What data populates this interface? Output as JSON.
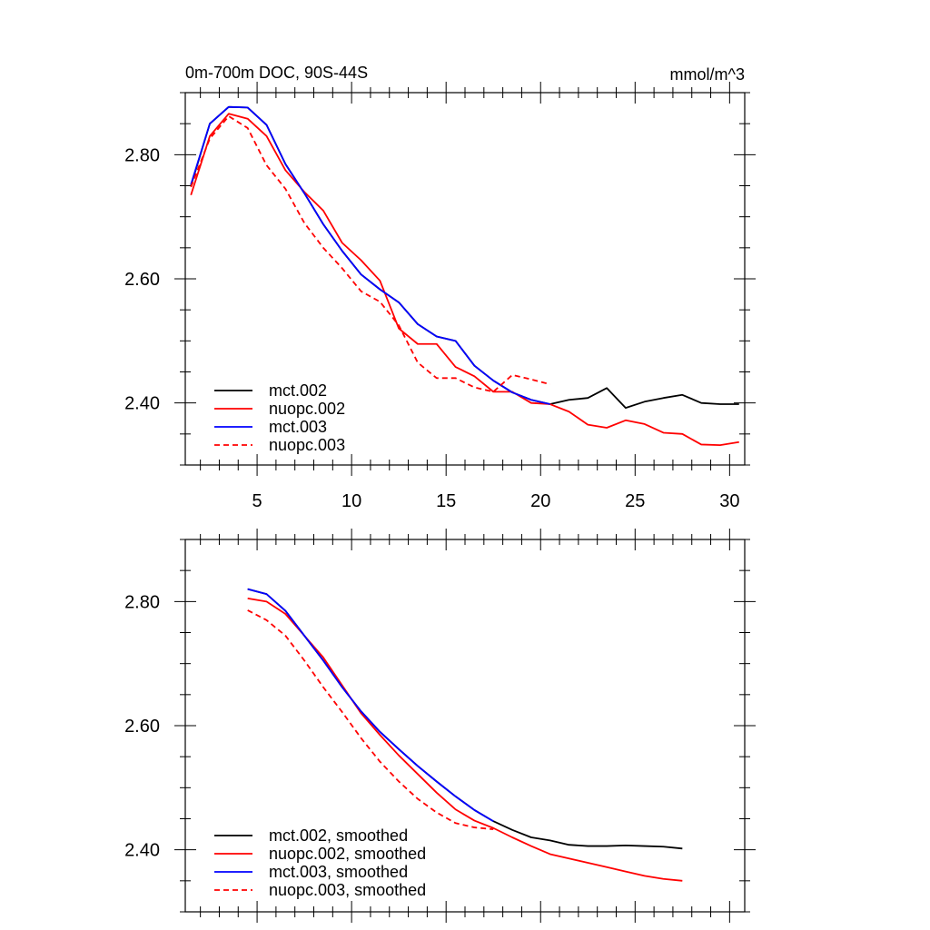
{
  "chart_data": [
    {
      "type": "line",
      "title": "0m-700m DOC, 90S-44S",
      "units": "mmol/m^3",
      "xlim": [
        1.2,
        30.8
      ],
      "ylim": [
        2.3,
        2.9
      ],
      "xticks": [
        5,
        10,
        15,
        20,
        25,
        30
      ],
      "xtick_labels": [
        "5",
        "10",
        "15",
        "20",
        "25",
        "30"
      ],
      "yticks": [
        2.4,
        2.6,
        2.8
      ],
      "ytick_labels": [
        "2.40",
        "2.60",
        "2.80"
      ],
      "legend": "bottom-left",
      "series": [
        {
          "name": "mct.002",
          "color": "#000000",
          "dash": "solid",
          "x": [
            1.5,
            2.5,
            3.5,
            4.5,
            5.5,
            6.5,
            7.5,
            8.5,
            9.5,
            10.5,
            11.5,
            12.5,
            13.5,
            14.5,
            15.5,
            16.5,
            17.5,
            18.5,
            19.5,
            20.5,
            21.5,
            22.5,
            23.5,
            24.5,
            25.5,
            26.5,
            27.5,
            28.5,
            29.5,
            30.5
          ],
          "y": [
            2.75,
            2.85,
            2.877,
            2.876,
            2.848,
            2.785,
            2.738,
            2.688,
            2.645,
            2.607,
            2.583,
            2.562,
            2.527,
            2.507,
            2.5,
            2.46,
            2.436,
            2.417,
            2.405,
            2.398,
            2.405,
            2.408,
            2.424,
            2.392,
            2.402,
            2.408,
            2.413,
            2.4,
            2.398,
            2.398
          ]
        },
        {
          "name": "nuopc.002",
          "color": "#ff0000",
          "dash": "solid",
          "x": [
            1.5,
            2.5,
            3.5,
            4.5,
            5.5,
            6.5,
            7.5,
            8.5,
            9.5,
            10.5,
            11.5,
            12.5,
            13.5,
            14.5,
            15.5,
            16.5,
            17.5,
            18.5,
            19.5,
            20.5,
            21.5,
            22.5,
            23.5,
            24.5,
            25.5,
            26.5,
            27.5,
            28.5,
            29.5,
            30.5
          ],
          "y": [
            2.735,
            2.83,
            2.866,
            2.858,
            2.83,
            2.775,
            2.74,
            2.71,
            2.658,
            2.63,
            2.597,
            2.52,
            2.495,
            2.495,
            2.458,
            2.443,
            2.418,
            2.418,
            2.4,
            2.398,
            2.386,
            2.365,
            2.36,
            2.372,
            2.366,
            2.352,
            2.35,
            2.333,
            2.332,
            2.337
          ]
        },
        {
          "name": "mct.003",
          "color": "#0000ff",
          "dash": "solid",
          "x": [
            1.5,
            2.5,
            3.5,
            4.5,
            5.5,
            6.5,
            7.5,
            8.5,
            9.5,
            10.5,
            11.5,
            12.5,
            13.5,
            14.5,
            15.5,
            16.5,
            17.5,
            18.5,
            19.5,
            20.5
          ],
          "y": [
            2.752,
            2.85,
            2.877,
            2.876,
            2.848,
            2.785,
            2.738,
            2.688,
            2.645,
            2.607,
            2.583,
            2.562,
            2.527,
            2.507,
            2.5,
            2.46,
            2.436,
            2.417,
            2.405,
            2.398
          ]
        },
        {
          "name": "nuopc.003",
          "color": "#ff0000",
          "dash": "dashed",
          "x": [
            1.5,
            2.5,
            3.5,
            4.5,
            5.5,
            6.5,
            7.5,
            8.5,
            9.5,
            10.5,
            11.5,
            12.5,
            13.5,
            14.5,
            15.5,
            16.5,
            17.5,
            18.5,
            19.5,
            20.5
          ],
          "y": [
            2.748,
            2.826,
            2.862,
            2.843,
            2.783,
            2.745,
            2.69,
            2.65,
            2.617,
            2.58,
            2.563,
            2.525,
            2.465,
            2.44,
            2.44,
            2.425,
            2.418,
            2.445,
            2.438,
            2.43
          ]
        }
      ]
    },
    {
      "type": "line",
      "title": "",
      "units": "",
      "xlim": [
        1.2,
        30.8
      ],
      "ylim": [
        2.3,
        2.9
      ],
      "xticks": [
        5,
        10,
        15,
        20,
        25,
        30
      ],
      "xtick_labels": [],
      "yticks": [
        2.4,
        2.6,
        2.8
      ],
      "ytick_labels": [
        "2.40",
        "2.60",
        "2.80"
      ],
      "legend": "bottom-left",
      "series": [
        {
          "name": "mct.002, smoothed",
          "color": "#000000",
          "dash": "solid",
          "x": [
            4.5,
            5.5,
            6.5,
            7.5,
            8.5,
            9.5,
            10.5,
            11.5,
            12.5,
            13.5,
            14.5,
            15.5,
            16.5,
            17.5,
            18.5,
            19.5,
            20.5,
            21.5,
            22.5,
            23.5,
            24.5,
            25.5,
            26.5,
            27.5
          ],
          "y": [
            2.82,
            2.812,
            2.785,
            2.745,
            2.705,
            2.662,
            2.623,
            2.59,
            2.562,
            2.535,
            2.51,
            2.486,
            2.464,
            2.446,
            2.432,
            2.42,
            2.415,
            2.408,
            2.406,
            2.406,
            2.407,
            2.406,
            2.405,
            2.402
          ]
        },
        {
          "name": "nuopc.002, smoothed",
          "color": "#ff0000",
          "dash": "solid",
          "x": [
            4.5,
            5.5,
            6.5,
            7.5,
            8.5,
            9.5,
            10.5,
            11.5,
            12.5,
            13.5,
            14.5,
            15.5,
            16.5,
            17.5,
            18.5,
            19.5,
            20.5,
            21.5,
            22.5,
            23.5,
            24.5,
            25.5,
            26.5,
            27.5
          ],
          "y": [
            2.805,
            2.8,
            2.78,
            2.745,
            2.71,
            2.665,
            2.62,
            2.585,
            2.552,
            2.522,
            2.492,
            2.465,
            2.447,
            2.435,
            2.42,
            2.406,
            2.393,
            2.386,
            2.379,
            2.372,
            2.365,
            2.358,
            2.353,
            2.35
          ]
        },
        {
          "name": "mct.003, smoothed",
          "color": "#0000ff",
          "dash": "solid",
          "x": [
            4.5,
            5.5,
            6.5,
            7.5,
            8.5,
            9.5,
            10.5,
            11.5,
            12.5,
            13.5,
            14.5,
            15.5,
            16.5,
            17.5
          ],
          "y": [
            2.82,
            2.812,
            2.785,
            2.745,
            2.705,
            2.662,
            2.623,
            2.59,
            2.562,
            2.535,
            2.51,
            2.486,
            2.464,
            2.446
          ]
        },
        {
          "name": "nuopc.003, smoothed",
          "color": "#ff0000",
          "dash": "dashed",
          "x": [
            4.5,
            5.5,
            6.5,
            7.5,
            8.5,
            9.5,
            10.5,
            11.5,
            12.5,
            13.5,
            14.5,
            15.5,
            16.5,
            17.5
          ],
          "y": [
            2.786,
            2.77,
            2.745,
            2.705,
            2.662,
            2.622,
            2.58,
            2.542,
            2.51,
            2.482,
            2.46,
            2.443,
            2.436,
            2.433
          ]
        }
      ]
    }
  ]
}
